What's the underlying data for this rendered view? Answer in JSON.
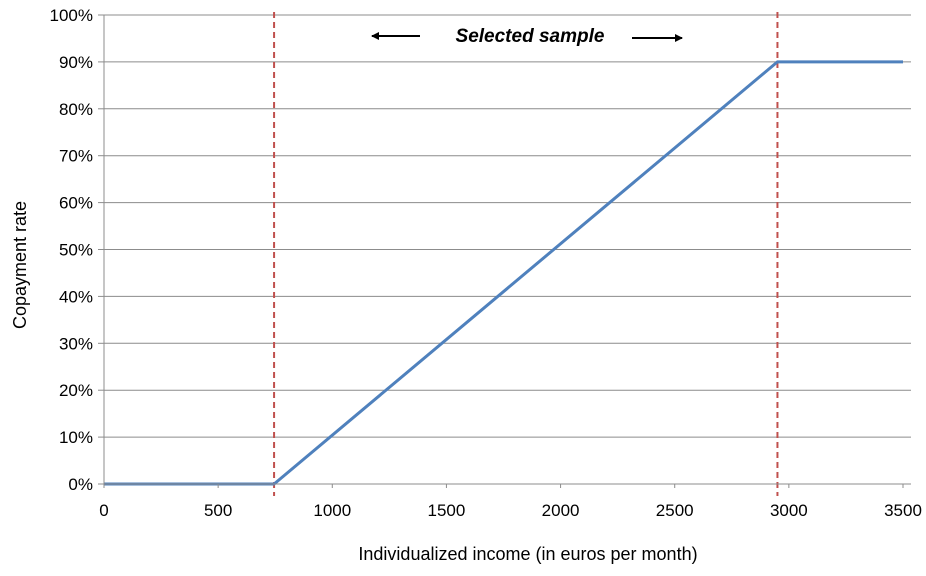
{
  "chart_data": {
    "type": "line",
    "title": "",
    "xlabel": "Individualized income (in euros per month)",
    "ylabel": "Copayment rate",
    "xlim": [
      0,
      3500
    ],
    "ylim": [
      0,
      100
    ],
    "x_ticks": [
      0,
      500,
      1000,
      1500,
      2000,
      2500,
      3000,
      3500
    ],
    "x_tick_labels": [
      "0",
      "500",
      "1000",
      "1500",
      "2000",
      "2500",
      "3000",
      "3500"
    ],
    "y_ticks": [
      0,
      10,
      20,
      30,
      40,
      50,
      60,
      70,
      80,
      90,
      100
    ],
    "y_tick_labels": [
      "0%",
      "10%",
      "20%",
      "30%",
      "40%",
      "50%",
      "60%",
      "70%",
      "80%",
      "90%",
      "100%"
    ],
    "grid": "horizontal",
    "series": [
      {
        "x": [
          0,
          745,
          2950,
          3500
        ],
        "y": [
          0,
          0,
          90,
          90
        ],
        "color": "#4f81bd"
      }
    ],
    "vertical_lines": [
      {
        "x": 745,
        "color": "#c0504d",
        "style": "dashed"
      },
      {
        "x": 2950,
        "color": "#c0504d",
        "style": "dashed"
      }
    ],
    "annotation": {
      "text": "Selected sample",
      "arrows": [
        "left",
        "right"
      ]
    }
  }
}
